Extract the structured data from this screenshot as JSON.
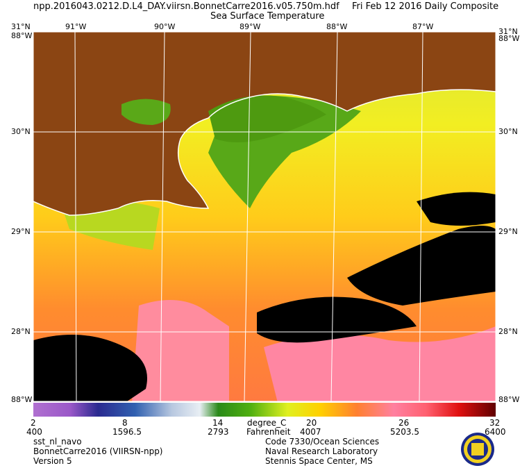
{
  "header": {
    "filename": "npp.2016043.0212.D.L4_DAY.viirsn.BonnetCarre2016.v05.750m.hdf",
    "date": "Fri Feb 12 2016 Daily Composite",
    "product": "Sea Surface Temperature"
  },
  "map": {
    "longitude_labels": [
      "91°W",
      "90°W",
      "89°W",
      "88°W",
      "87°W"
    ],
    "latitude_labels": [
      "31°N",
      "30°N",
      "29°N",
      "28°N"
    ],
    "corner_labels": {
      "top_left": "31°N",
      "top_left_lon": "88°W",
      "top_right": "31°N",
      "top_right_lon": "88°W",
      "bottom_left": "88°W",
      "bottom_right": "88°W"
    },
    "colors": {
      "land": "#8B4513",
      "coastline": "#ffffff",
      "grid": "#ffffff",
      "cloud": "#000000"
    }
  },
  "colorbar": {
    "ticks_celsius": [
      "2",
      "8",
      "14",
      "20",
      "26",
      "32"
    ],
    "ticks_fahrenheit": [
      "400",
      "1596.5",
      "2793",
      "4007",
      "5203.5",
      "6400"
    ],
    "unit_celsius": "degree_C",
    "unit_fahrenheit": "Fahrenheit"
  },
  "footer": {
    "left": [
      "sst_nl_navo",
      "BonnetCarre2016 (VIIRSN-npp)",
      "Version 5"
    ],
    "right": [
      "Code 7330/Ocean Sciences",
      "Naval Research Laboratory",
      "Stennis Space Center, MS"
    ]
  }
}
